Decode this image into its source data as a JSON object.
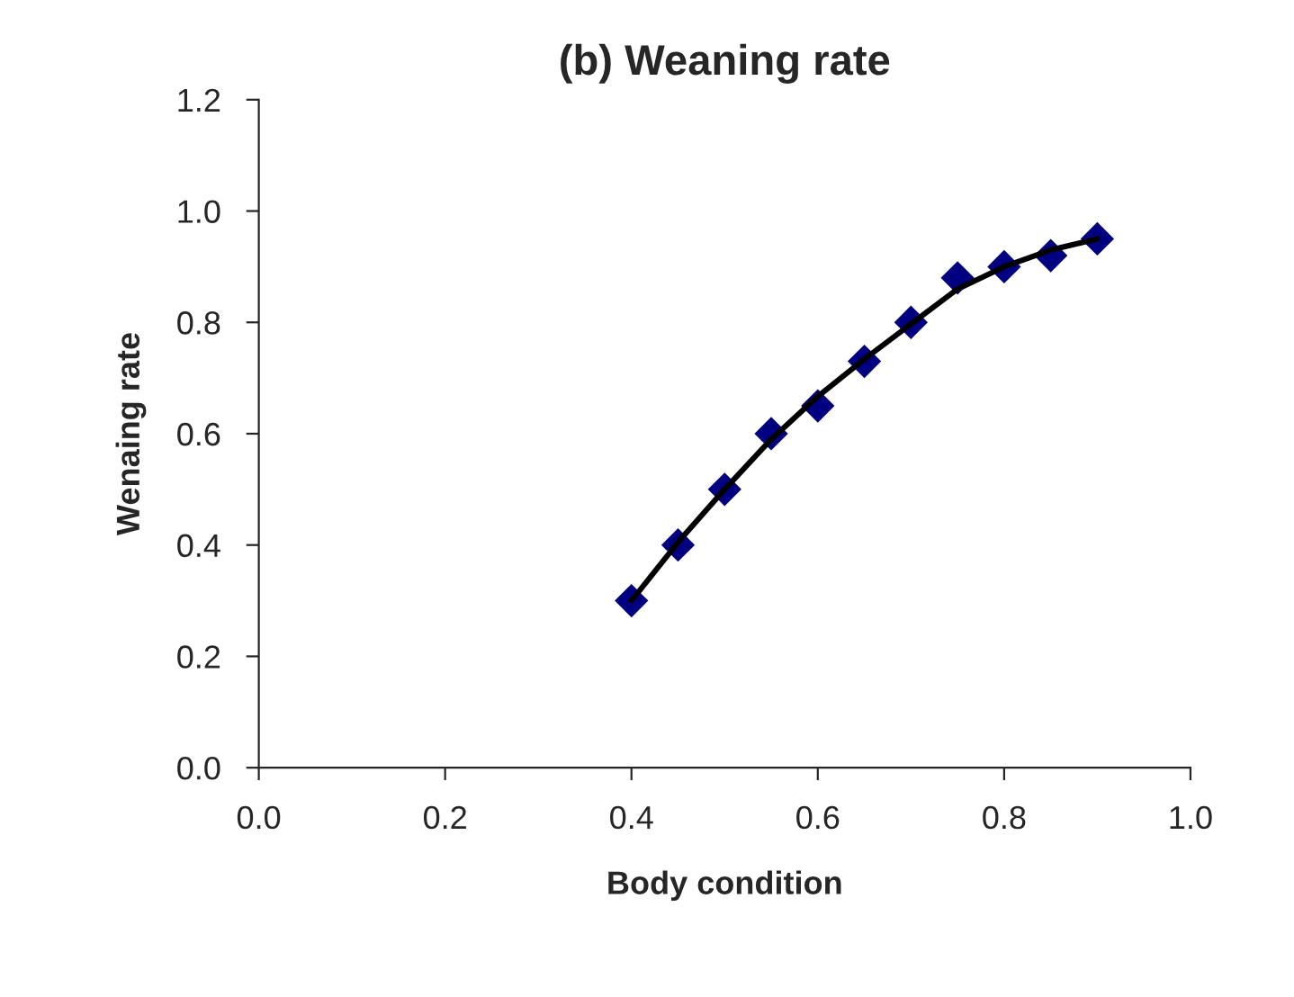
{
  "chart_data": {
    "type": "scatter",
    "title": "(b) Weaning rate",
    "xlabel": "Body condition",
    "ylabel": "Wenaing rate",
    "xlim": [
      0.0,
      1.0
    ],
    "xticks": [
      {
        "value": 0.0,
        "label": "0.0"
      },
      {
        "value": 0.2,
        "label": "0.2"
      },
      {
        "value": 0.4,
        "label": "0.4"
      },
      {
        "value": 0.6,
        "label": "0.6"
      },
      {
        "value": 0.8,
        "label": "0.8"
      },
      {
        "value": 1.0,
        "label": "1.0"
      }
    ],
    "ylim": [
      0.0,
      1.2
    ],
    "yticks": [
      {
        "value": 0.0,
        "label": "0.0"
      },
      {
        "value": 0.2,
        "label": "0.2"
      },
      {
        "value": 0.4,
        "label": "0.4"
      },
      {
        "value": 0.6,
        "label": "0.6"
      },
      {
        "value": 0.8,
        "label": "0.8"
      },
      {
        "value": 1.0,
        "label": "1.0"
      },
      {
        "value": 1.2,
        "label": "1.2"
      }
    ],
    "x": [
      0.4,
      0.45,
      0.5,
      0.55,
      0.6,
      0.65,
      0.7,
      0.75,
      0.8,
      0.85,
      0.9
    ],
    "grid": false,
    "legend": false,
    "series": [
      {
        "color": "#000080",
        "marker": "diamond",
        "values": [
          0.3,
          0.4,
          0.5,
          0.6,
          0.65,
          0.73,
          0.8,
          0.88,
          0.9,
          0.92,
          0.95
        ]
      },
      {
        "type": "line",
        "color": "#000000",
        "marker": "none",
        "line_style": "solid",
        "x": [
          0.4,
          0.45,
          0.5,
          0.55,
          0.6,
          0.65,
          0.7,
          0.75,
          0.8,
          0.85,
          0.9
        ],
        "values": [
          0.3,
          0.405,
          0.5,
          0.59,
          0.667,
          0.734,
          0.797,
          0.86,
          0.9,
          0.93,
          0.95
        ]
      }
    ]
  }
}
